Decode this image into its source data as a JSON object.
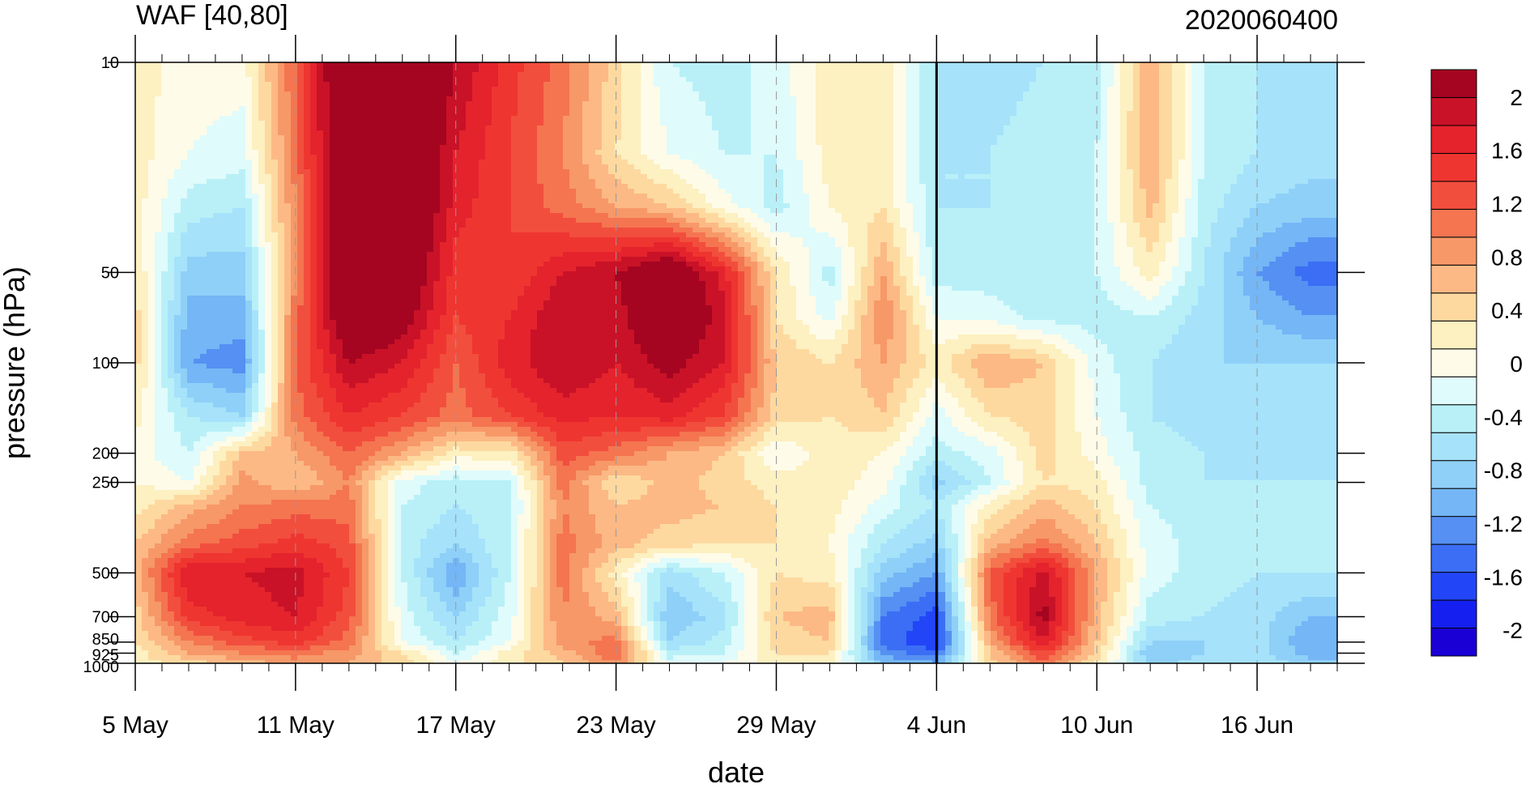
{
  "chart_data": {
    "type": "heatmap",
    "title": "WAF [40,80]",
    "right_title": "2020060400",
    "xlabel": "date",
    "ylabel": "pressure (hPa)",
    "y_scale": "log",
    "y_reversed": true,
    "ylim": [
      1000,
      10
    ],
    "xlim": [
      "2020-05-05",
      "2020-06-19"
    ],
    "x_ticks": [
      {
        "label": "5 May",
        "date": "2020-05-05"
      },
      {
        "label": "11 May",
        "date": "2020-05-11"
      },
      {
        "label": "17 May",
        "date": "2020-05-17"
      },
      {
        "label": "23 May",
        "date": "2020-05-23"
      },
      {
        "label": "29 May",
        "date": "2020-05-29"
      },
      {
        "label": "4 Jun",
        "date": "2020-06-04"
      },
      {
        "label": "10 Jun",
        "date": "2020-06-10"
      },
      {
        "label": "16 Jun",
        "date": "2020-06-16"
      }
    ],
    "y_ticks": [
      {
        "label": "10",
        "value": 10
      },
      {
        "label": "50",
        "value": 50
      },
      {
        "label": "100",
        "value": 100
      },
      {
        "label": "200",
        "value": 200
      },
      {
        "label": "250",
        "value": 250
      },
      {
        "label": "500",
        "value": 500
      },
      {
        "label": "700",
        "value": 700
      },
      {
        "label": "850",
        "value": 850
      },
      {
        "label": "925",
        "value": 925
      },
      {
        "label": "1000",
        "value": 1000
      }
    ],
    "reference_line_date": "2020-06-04",
    "colorbar": {
      "levels": [
        -2.2,
        -2.0,
        -1.8,
        -1.6,
        -1.4,
        -1.2,
        -1.0,
        -0.8,
        -0.6,
        -0.4,
        -0.2,
        0,
        0.2,
        0.4,
        0.6,
        0.8,
        1.0,
        1.2,
        1.4,
        1.6,
        1.8,
        2.0,
        2.2
      ],
      "colors": [
        "#1b00d6",
        "#1520f0",
        "#2246f7",
        "#3b6ef5",
        "#5590f2",
        "#74b6f6",
        "#8fd0f8",
        "#a6e2fa",
        "#b9f0f8",
        "#dffbfb",
        "#fefbe8",
        "#fdf0c1",
        "#fdd9a0",
        "#fcb985",
        "#f79868",
        "#f47550",
        "#f24e3e",
        "#ef3530",
        "#e4232d",
        "#c91227",
        "#a50521"
      ],
      "label_values": [
        {
          "label": "2",
          "value": 2.0
        },
        {
          "label": "1.6",
          "value": 1.6
        },
        {
          "label": "1.2",
          "value": 1.2
        },
        {
          "label": "0.8",
          "value": 0.8
        },
        {
          "label": "0.4",
          "value": 0.4
        },
        {
          "label": "0",
          "value": 0
        },
        {
          "label": "-0.4",
          "value": -0.4
        },
        {
          "label": "-0.8",
          "value": -0.8
        },
        {
          "label": "-1.2",
          "value": -1.2
        },
        {
          "label": "-1.6",
          "value": -1.6
        },
        {
          "label": "-2",
          "value": -2.0
        }
      ]
    },
    "grid": {
      "dates": [
        "2020-05-05",
        "2020-05-07",
        "2020-05-09",
        "2020-05-11",
        "2020-05-13",
        "2020-05-15",
        "2020-05-17",
        "2020-05-19",
        "2020-05-21",
        "2020-05-23",
        "2020-05-25",
        "2020-05-27",
        "2020-05-29",
        "2020-05-31",
        "2020-06-02",
        "2020-06-04",
        "2020-06-06",
        "2020-06-08",
        "2020-06-10",
        "2020-06-12",
        "2020-06-14",
        "2020-06-16",
        "2020-06-18"
      ],
      "levels_hPa": [
        10,
        20,
        30,
        50,
        70,
        100,
        150,
        200,
        250,
        300,
        400,
        500,
        700,
        850,
        925,
        1000
      ],
      "values": [
        [
          0.1,
          -0.1,
          -0.1,
          1.0,
          2.4,
          2.4,
          1.8,
          1.3,
          0.9,
          0.3,
          -0.4,
          -0.5,
          -0.3,
          0.1,
          0.1,
          -0.6,
          -0.7,
          -0.6,
          -0.5,
          0.6,
          -0.4,
          -0.6,
          -0.6
        ],
        [
          0.1,
          -0.2,
          -0.3,
          0.9,
          2.4,
          2.4,
          1.6,
          1.2,
          0.8,
          0.2,
          -0.2,
          -0.4,
          -0.4,
          0.1,
          0.1,
          -0.6,
          -0.6,
          -0.5,
          -0.4,
          0.6,
          -0.4,
          -0.6,
          -0.7
        ],
        [
          0.1,
          -0.5,
          -0.6,
          0.8,
          2.4,
          2.4,
          1.5,
          1.2,
          0.9,
          0.6,
          0.4,
          -0.1,
          -0.5,
          0.0,
          0.2,
          -0.6,
          -0.6,
          -0.5,
          -0.4,
          0.5,
          -0.5,
          -0.8,
          -0.9
        ],
        [
          0.2,
          -0.9,
          -0.9,
          0.8,
          2.4,
          2.2,
          1.3,
          1.2,
          1.6,
          1.8,
          2.2,
          1.5,
          0.2,
          -0.5,
          0.6,
          -0.5,
          -0.5,
          -0.5,
          -0.4,
          0.1,
          -0.6,
          -1.2,
          -1.5
        ],
        [
          0.3,
          -1.1,
          -1.1,
          0.9,
          2.2,
          2.0,
          1.2,
          1.4,
          1.8,
          1.7,
          2.2,
          1.7,
          0.2,
          -0.3,
          0.8,
          -0.2,
          -0.3,
          -0.5,
          -0.5,
          -0.4,
          -0.7,
          -1.0,
          -1.2
        ],
        [
          0.3,
          -1.2,
          -1.3,
          1.0,
          1.8,
          1.6,
          1.0,
          1.5,
          1.8,
          1.6,
          1.9,
          1.6,
          0.4,
          0.2,
          0.6,
          0.1,
          0.6,
          0.4,
          -0.3,
          -0.6,
          -0.8,
          -0.8,
          -0.8
        ],
        [
          0.1,
          -0.6,
          -0.8,
          0.9,
          1.4,
          1.2,
          0.9,
          1.2,
          1.5,
          1.4,
          1.5,
          1.2,
          0.3,
          0.2,
          0.4,
          -0.3,
          0.2,
          0.3,
          -0.2,
          -0.6,
          -0.7,
          -0.7,
          -0.7
        ],
        [
          -0.1,
          -0.4,
          0.4,
          0.6,
          1.0,
          0.6,
          0.1,
          0.1,
          1.1,
          0.9,
          0.6,
          0.4,
          -0.2,
          0.1,
          0.0,
          -0.5,
          -0.3,
          0.3,
          -0.1,
          -0.5,
          -0.6,
          -0.6,
          -0.6
        ],
        [
          0.0,
          -0.2,
          0.7,
          0.4,
          0.8,
          -0.3,
          -0.5,
          -0.4,
          0.9,
          0.2,
          0.5,
          0.3,
          0.1,
          0.1,
          -0.1,
          -0.9,
          -0.4,
          0.2,
          0.1,
          -0.5,
          -0.6,
          -0.6,
          -0.6
        ],
        [
          0.1,
          0.5,
          0.8,
          0.9,
          0.9,
          -0.4,
          -0.6,
          -0.5,
          0.8,
          0.4,
          0.5,
          0.4,
          0.2,
          0.1,
          -0.3,
          -0.6,
          0.1,
          0.5,
          0.2,
          -0.4,
          -0.5,
          -0.5,
          -0.5
        ],
        [
          0.4,
          0.9,
          1.1,
          1.3,
          1.1,
          -0.5,
          -0.8,
          -0.4,
          0.9,
          0.5,
          0.3,
          0.2,
          0.2,
          0.0,
          -0.6,
          -0.9,
          0.5,
          0.9,
          0.4,
          -0.3,
          -0.5,
          -0.5,
          -0.5
        ],
        [
          0.5,
          1.6,
          1.6,
          1.7,
          1.2,
          -0.4,
          -1.2,
          -0.4,
          0.9,
          0.1,
          -0.7,
          -0.4,
          0.2,
          0.1,
          -0.9,
          -1.2,
          1.0,
          1.7,
          0.6,
          -0.3,
          -0.5,
          -0.6,
          -0.6
        ],
        [
          0.3,
          1.3,
          1.5,
          1.6,
          1.1,
          -0.3,
          -0.8,
          -0.3,
          0.8,
          0.5,
          -1.0,
          -0.7,
          0.4,
          0.5,
          -1.4,
          -1.7,
          0.9,
          1.9,
          0.5,
          -0.5,
          -0.6,
          -0.7,
          -1.0
        ],
        [
          0.2,
          0.8,
          1.1,
          1.3,
          0.9,
          -0.2,
          -0.6,
          -0.2,
          0.7,
          0.9,
          -0.8,
          -0.5,
          0.3,
          0.4,
          -1.5,
          -1.8,
          0.6,
          1.6,
          0.4,
          -0.8,
          -0.8,
          -0.7,
          -1.2
        ],
        [
          0.1,
          0.6,
          0.8,
          0.9,
          0.7,
          0.2,
          -0.4,
          0.1,
          0.5,
          1.0,
          -0.5,
          -0.4,
          0.2,
          0.2,
          -1.3,
          -1.5,
          0.4,
          1.2,
          0.3,
          -1.0,
          -0.8,
          -0.7,
          -1.1
        ],
        [
          0.1,
          0.3,
          0.5,
          0.7,
          0.6,
          0.3,
          -0.2,
          0.1,
          0.4,
          0.8,
          -0.3,
          -0.2,
          0.1,
          0.1,
          -1.0,
          -1.2,
          0.3,
          0.9,
          0.2,
          -0.9,
          -0.7,
          -0.6,
          -0.9
        ]
      ]
    }
  }
}
